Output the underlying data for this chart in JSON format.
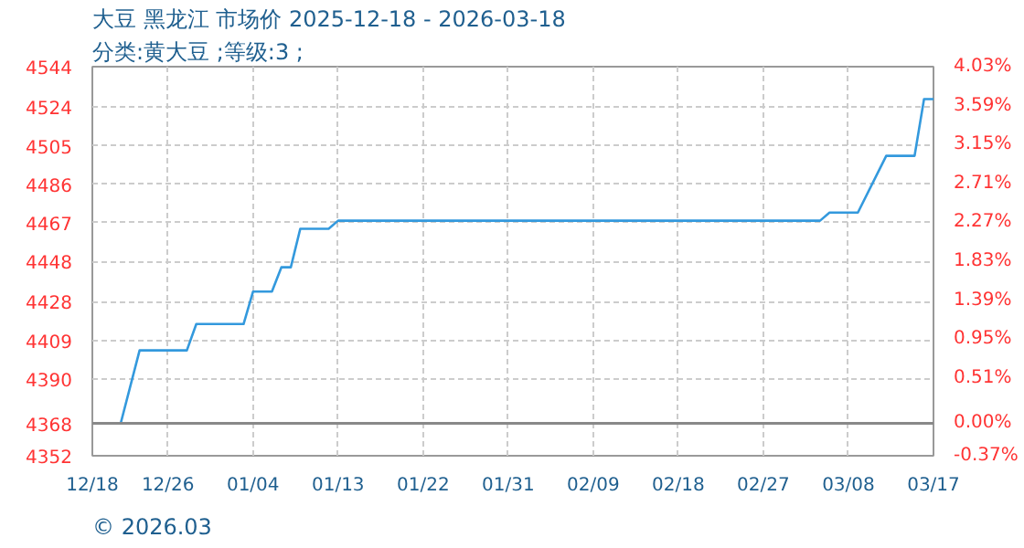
{
  "chart_data": {
    "type": "line",
    "title": "大豆 黑龙江 市场价 2025-12-18 - 2026-03-18",
    "subtitle": "分类:黄大豆 ;等级:3 ;",
    "annotations": [
      "© 2026.03"
    ],
    "x": [
      "2025-12-18",
      "2025-12-21",
      "2025-12-23",
      "2025-12-28",
      "2025-12-29",
      "2026-01-03",
      "2026-01-04",
      "2026-01-06",
      "2026-01-07",
      "2026-01-08",
      "2026-01-09",
      "2026-01-12",
      "2026-01-13",
      "2026-03-05",
      "2026-03-06",
      "2026-03-09",
      "2026-03-12",
      "2026-03-15",
      "2026-03-16",
      "2026-03-17"
    ],
    "series": [
      {
        "color": "#3399dd",
        "values": [
          4368,
          4368,
          4404,
          4404,
          4417,
          4417,
          4433,
          4433,
          4445,
          4445,
          4464,
          4464,
          4468,
          4468,
          4472,
          4472,
          4500,
          4500,
          4528,
          4528
        ]
      }
    ],
    "xlim": [
      "2025-12-18",
      "2026-03-17"
    ],
    "xticks": [
      {
        "value": "2025-12-18",
        "label": "12/18"
      },
      {
        "value": "2025-12-26",
        "label": "12/26"
      },
      {
        "value": "2026-01-04",
        "label": "01/04"
      },
      {
        "value": "2026-01-13",
        "label": "01/13"
      },
      {
        "value": "2026-01-22",
        "label": "01/22"
      },
      {
        "value": "2026-01-31",
        "label": "01/31"
      },
      {
        "value": "2026-02-09",
        "label": "02/09"
      },
      {
        "value": "2026-02-18",
        "label": "02/18"
      },
      {
        "value": "2026-02-27",
        "label": "02/27"
      },
      {
        "value": "2026-03-08",
        "label": "03/08"
      },
      {
        "value": "2026-03-17",
        "label": "03/17"
      }
    ],
    "ylim": [
      4352,
      4544
    ],
    "yticks": [
      4352,
      4368,
      4390,
      4409,
      4428,
      4448,
      4467,
      4486,
      4505,
      4524,
      4544
    ],
    "y2lim": [
      -0.37,
      4.03
    ],
    "y2ticks": [
      {
        "value": -0.37,
        "label": "-0.37%"
      },
      {
        "value": 0,
        "label": "0.00%"
      },
      {
        "value": 0.51,
        "label": "0.51%"
      },
      {
        "value": 0.95,
        "label": "0.95%"
      },
      {
        "value": 1.39,
        "label": "1.39%"
      },
      {
        "value": 1.83,
        "label": "1.83%"
      },
      {
        "value": 2.27,
        "label": "2.27%"
      },
      {
        "value": 2.71,
        "label": "2.71%"
      },
      {
        "value": 3.15,
        "label": "3.15%"
      },
      {
        "value": 3.59,
        "label": "3.59%"
      },
      {
        "value": 4.03,
        "label": "4.03%"
      }
    ],
    "ref_lines": [
      {
        "axis": "y",
        "value": 4368,
        "color": "#888888"
      }
    ],
    "grid": true,
    "marker": "none",
    "line_style": "solid"
  }
}
